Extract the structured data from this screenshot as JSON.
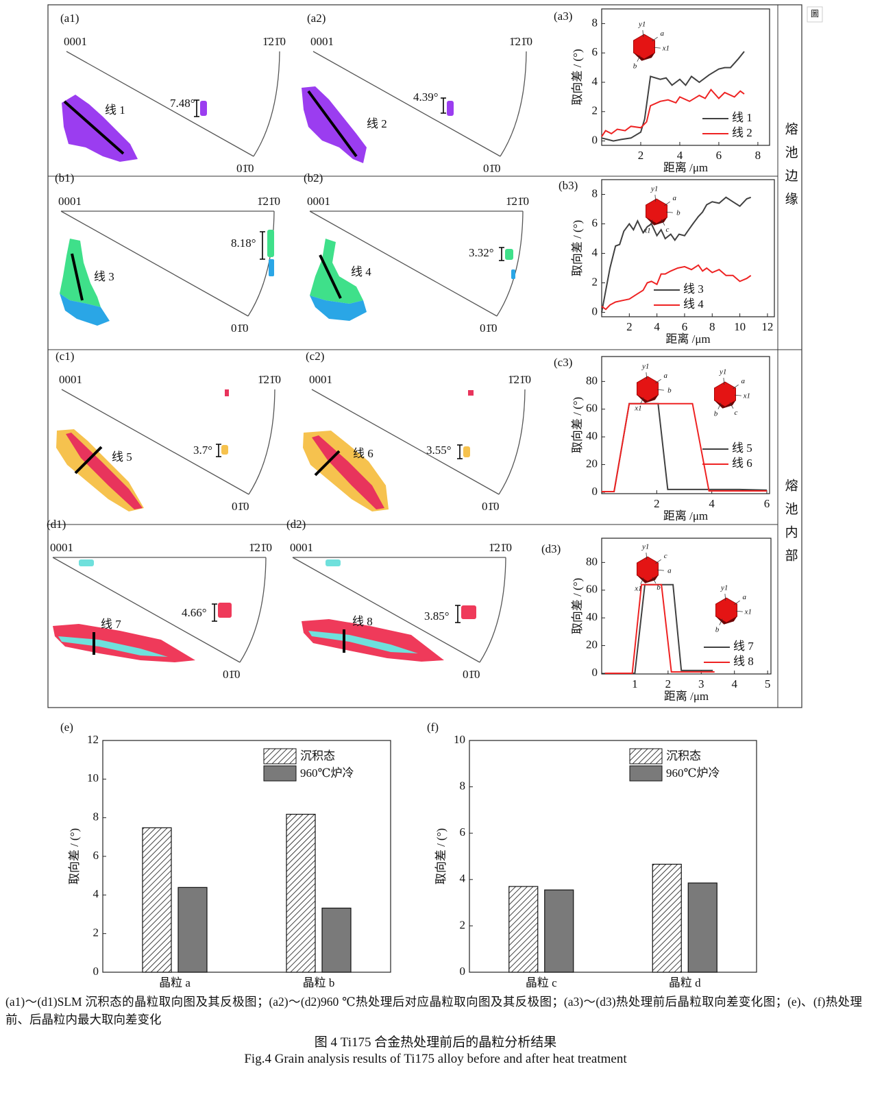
{
  "icon": "圖",
  "ipf_panels": [
    {
      "label": "(a1)",
      "top_left": "0001",
      "top_right": "1̄21̄0",
      "bottom": "01̄0",
      "line_label": "线 1",
      "angle": "7.48°"
    },
    {
      "label": "(a2)",
      "top_left": "0001",
      "top_right": "1̄21̄0",
      "bottom": "01̄0",
      "line_label": "线 2",
      "angle": "4.39°"
    },
    {
      "label": "(b1)",
      "top_left": "0001",
      "top_right": "1̄21̄0",
      "bottom": "01̄0",
      "line_label": "线 3",
      "angle": "8.18°"
    },
    {
      "label": "(b2)",
      "top_left": "0001",
      "top_right": "1̄21̄0",
      "bottom": "01̄0",
      "line_label": "线 4",
      "angle": "3.32°"
    },
    {
      "label": "(c1)",
      "top_left": "0001",
      "top_right": "1̄21̄0",
      "bottom": "01̄0",
      "line_label": "线 5",
      "angle": "3.7°"
    },
    {
      "label": "(c2)",
      "top_left": "0001",
      "top_right": "1̄21̄0",
      "bottom": "01̄0",
      "line_label": "线 6",
      "angle": "3.55°"
    },
    {
      "label": "(d1)",
      "top_left": "0001",
      "top_right": "1̄21̄0",
      "bottom": "01̄0",
      "line_label": "线 7",
      "angle": "4.66°"
    },
    {
      "label": "(d2)",
      "top_left": "0001",
      "top_right": "1̄21̄0",
      "bottom": "01̄0",
      "line_label": "线 8",
      "angle": "3.85°"
    }
  ],
  "side_labels": [
    "熔池边缘",
    "熔池内部"
  ],
  "chart_data": [
    {
      "type": "line",
      "panel_label": "(a3)",
      "xlabel": "距离 /μm",
      "ylabel": "取向差 / (°)",
      "xlim": [
        0,
        8.6
      ],
      "ylim": [
        -0.3,
        9
      ],
      "xticks": [
        2,
        4,
        6,
        8
      ],
      "yticks": [
        0,
        2,
        4,
        6,
        8
      ],
      "legend": "lower right",
      "insets": [
        {
          "labels": [
            "y1",
            "a",
            "x1",
            "b"
          ]
        }
      ],
      "series": [
        {
          "name": "线 1",
          "color": "#404040",
          "x": [
            0,
            0.3,
            0.6,
            1,
            1.5,
            2,
            2.2,
            2.5,
            3,
            3.3,
            3.6,
            4,
            4.3,
            4.6,
            5,
            5.5,
            6,
            6.3,
            6.6,
            7,
            7.3
          ],
          "values": [
            0.2,
            0.1,
            0,
            0.1,
            0.2,
            0.6,
            1.5,
            4.4,
            4.2,
            4.3,
            3.8,
            4.2,
            3.8,
            4.4,
            4,
            4.5,
            4.9,
            5,
            5,
            5.6,
            6.1
          ]
        },
        {
          "name": "线 2",
          "color": "#ee2222",
          "x": [
            0,
            0.2,
            0.5,
            0.8,
            1.2,
            1.5,
            2,
            2.3,
            2.5,
            3,
            3.4,
            3.8,
            4,
            4.5,
            5,
            5.3,
            5.6,
            6,
            6.3,
            6.8,
            7.1,
            7.3
          ],
          "values": [
            0.3,
            0.7,
            0.5,
            0.8,
            0.7,
            1,
            0.9,
            1.3,
            2.4,
            2.7,
            2.8,
            2.6,
            3,
            2.7,
            3.1,
            2.9,
            3.5,
            2.9,
            3.3,
            3,
            3.4,
            3.2
          ]
        }
      ]
    },
    {
      "type": "line",
      "panel_label": "(b3)",
      "xlabel": "距离 /μm",
      "ylabel": "取向差 / (°)",
      "xlim": [
        0,
        12.5
      ],
      "ylim": [
        -0.3,
        9
      ],
      "xticks": [
        2,
        4,
        6,
        8,
        10,
        12
      ],
      "yticks": [
        0,
        2,
        4,
        6,
        8
      ],
      "legend": "lower center",
      "insets": [
        {
          "labels": [
            "y1",
            "a",
            "b",
            "x1",
            "c"
          ]
        }
      ],
      "series": [
        {
          "name": "线 3",
          "color": "#404040",
          "x": [
            0,
            0.3,
            0.6,
            1,
            1.3,
            1.6,
            2,
            2.3,
            2.6,
            3,
            3.3,
            3.6,
            4,
            4.3,
            4.6,
            5,
            5.3,
            5.6,
            6,
            6.3,
            6.6,
            7,
            7.3,
            7.6,
            8,
            8.5,
            9,
            9.5,
            10,
            10.5,
            10.8
          ],
          "values": [
            0,
            1.5,
            3,
            4.5,
            4.6,
            5.5,
            6,
            5.6,
            6.2,
            5.4,
            5.8,
            6,
            5.2,
            5.6,
            5,
            5.3,
            4.9,
            5.3,
            5.2,
            5.6,
            6,
            6.5,
            6.8,
            7.3,
            7.5,
            7.4,
            7.8,
            7.5,
            7.2,
            7.7,
            7.8
          ]
        },
        {
          "name": "线 4",
          "color": "#ee2222",
          "x": [
            0,
            0.3,
            0.6,
            1,
            1.5,
            2,
            2.5,
            3,
            3.3,
            3.6,
            4,
            4.3,
            4.6,
            5,
            5.5,
            6,
            6.5,
            7,
            7.3,
            7.6,
            8,
            8.5,
            9,
            9.5,
            10,
            10.5,
            10.8
          ],
          "values": [
            0.4,
            0.2,
            0.5,
            0.7,
            0.8,
            0.9,
            1.2,
            1.5,
            2,
            2.1,
            1.9,
            2.6,
            2.6,
            2.8,
            3,
            3.1,
            2.9,
            3.2,
            2.8,
            3,
            2.7,
            2.9,
            2.5,
            2.5,
            2.1,
            2.3,
            2.5
          ]
        }
      ]
    },
    {
      "type": "line",
      "panel_label": "(c3)",
      "xlabel": "距离 /μm",
      "ylabel": "取向差 / (°)",
      "xlim": [
        0,
        6.1
      ],
      "ylim": [
        -1,
        98
      ],
      "xticks": [
        2,
        4,
        6
      ],
      "yticks": [
        0,
        20,
        40,
        60,
        80
      ],
      "legend": "center right",
      "insets": [
        {
          "labels": [
            "y1",
            "a",
            "b",
            "x1"
          ]
        },
        {
          "labels": [
            "y1",
            "a",
            "x1",
            "b",
            "c"
          ]
        }
      ],
      "series": [
        {
          "name": "线 5",
          "color": "#404040",
          "x": [
            0,
            0.45,
            1,
            2.05,
            2.4,
            3,
            4,
            5,
            6
          ],
          "values": [
            0.5,
            0.5,
            64,
            64,
            2,
            2,
            2,
            2,
            1.5
          ]
        },
        {
          "name": "线 6",
          "color": "#ee2222",
          "x": [
            0,
            0.45,
            1,
            3.3,
            3.9,
            4,
            5,
            6
          ],
          "values": [
            0.5,
            0.5,
            64,
            64,
            1,
            1,
            1,
            1
          ]
        }
      ]
    },
    {
      "type": "line",
      "panel_label": "(d3)",
      "xlabel": "距离 /μm",
      "ylabel": "取向差 / (°)",
      "xlim": [
        0,
        5.1
      ],
      "ylim": [
        -0.5,
        97.5
      ],
      "xticks": [
        1,
        2,
        3,
        4,
        5
      ],
      "yticks": [
        0,
        20,
        40,
        60,
        80
      ],
      "legend": "lower right",
      "insets": [
        {
          "labels": [
            "y1",
            "c",
            "a",
            "x1",
            "b"
          ]
        },
        {
          "labels": [
            "y1",
            "a",
            "x1",
            "b"
          ]
        }
      ],
      "series": [
        {
          "name": "线 7",
          "color": "#404040",
          "x": [
            0.1,
            1,
            1.3,
            2.15,
            2.4,
            3.35
          ],
          "values": [
            0,
            0,
            64,
            64,
            2,
            2
          ]
        },
        {
          "name": "线 8",
          "color": "#ee2222",
          "x": [
            0.1,
            0.92,
            1.2,
            1.8,
            2.1,
            3.4
          ],
          "values": [
            0,
            0,
            64,
            64,
            1,
            1
          ]
        }
      ]
    },
    {
      "type": "bar",
      "panel_label": "(e)",
      "ylabel": "取向差 / (°)",
      "categories": [
        "晶粒 a",
        "晶粒 b"
      ],
      "ylim": [
        0,
        12
      ],
      "yticks": [
        0,
        2,
        4,
        6,
        8,
        10,
        12
      ],
      "legend": "upper right",
      "series": [
        {
          "name": "沉积态",
          "color": "#ffffff",
          "pattern": "hatch",
          "values": [
            7.48,
            8.18
          ]
        },
        {
          "name": "960℃炉冷",
          "color": "#7a7a7a",
          "values": [
            4.39,
            3.32
          ]
        }
      ]
    },
    {
      "type": "bar",
      "panel_label": "(f)",
      "ylabel": "取向差 / (°)",
      "categories": [
        "晶粒 c",
        "晶粒 d"
      ],
      "ylim": [
        0,
        10
      ],
      "yticks": [
        0,
        2,
        4,
        6,
        8,
        10
      ],
      "legend": "upper right",
      "series": [
        {
          "name": "沉积态",
          "color": "#ffffff",
          "pattern": "hatch",
          "values": [
            3.7,
            4.66
          ]
        },
        {
          "name": "960℃炉冷",
          "color": "#7a7a7a",
          "values": [
            3.55,
            3.85
          ]
        }
      ]
    }
  ],
  "caption": "(a1)～(d1)SLM 沉积态的晶粒取向图及其反极图；(a2)～(d2)960 ℃热处理后对应晶粒取向图及其反极图；(a3)～(d3)热处理前后晶粒取向差变化图；(e)、(f)热处理前、后晶粒内最大取向差变化",
  "figure_title": "图 4  Ti175 合金热处理前后的晶粒分析结果",
  "figure_title_en": "Fig.4  Grain analysis results of Ti175 alloy before and after heat treatment"
}
